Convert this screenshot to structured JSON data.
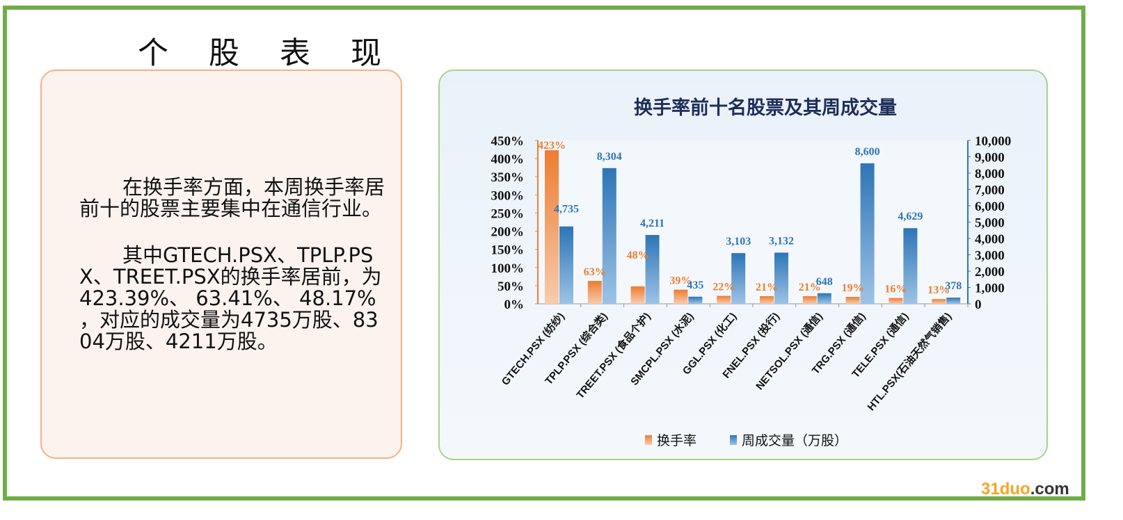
{
  "page_title": "个 股 表 现",
  "text_panel": {
    "paragraph1": "在换手率方面，本周换手率居前十的股票主要集中在通信行业。",
    "paragraph2": "其中GTECH.PSX、TPLP.PSX、TREET.PSX的换手率居前，为 423.39%、 63.41%、 48.17% ，对应的成交量为4735万股、8304万股、4211万股。"
  },
  "watermark": {
    "main": "31duo",
    "suffix": ".com"
  },
  "colors": {
    "orange": "#ed7d31",
    "blue": "#2e75b6",
    "frame": "#70ad47"
  },
  "chart_data": {
    "type": "bar",
    "title": "换手率前十名股票及其周成交量",
    "categories": [
      "GTECH.PSX (纺纱)",
      "TPLP.PSX (综合类)",
      "TREET.PSX (食品个护)",
      "SMCPL.PSX (水泥)",
      "GGL.PSX (化工)",
      "FNEL.PSX (投行)",
      "NETSOL.PSX (通信)",
      "TRG.PSX (通信)",
      "TELE.PSX (通信)",
      "HTL.PSX(石油天然气销售)"
    ],
    "series": [
      {
        "name": "换手率",
        "axis": "left",
        "values": [
          423,
          63,
          48,
          39,
          22,
          21,
          21,
          19,
          16,
          13
        ],
        "labels": [
          "423%",
          "63%",
          "48%",
          "39%",
          "22%",
          "21%",
          "21%",
          "19%",
          "16%",
          "13%"
        ]
      },
      {
        "name": "周成交量（万股）",
        "axis": "right",
        "values": [
          4735,
          8304,
          4211,
          435,
          3103,
          3132,
          648,
          8600,
          4629,
          378
        ],
        "labels": [
          "4,735",
          "8,304",
          "4,211",
          "435",
          "3,103",
          "3,132",
          "648",
          "8,600",
          "4,629",
          "378"
        ]
      }
    ],
    "y_left": {
      "lim": [
        0,
        450
      ],
      "ticks": [
        "0%",
        "50%",
        "100%",
        "150%",
        "200%",
        "250%",
        "300%",
        "350%",
        "400%",
        "450%"
      ]
    },
    "y_right": {
      "lim": [
        0,
        10000
      ],
      "ticks": [
        "0",
        "1,000",
        "2,000",
        "3,000",
        "4,000",
        "5,000",
        "6,000",
        "7,000",
        "8,000",
        "9,000",
        "10,000"
      ]
    },
    "legend": "bottom"
  }
}
